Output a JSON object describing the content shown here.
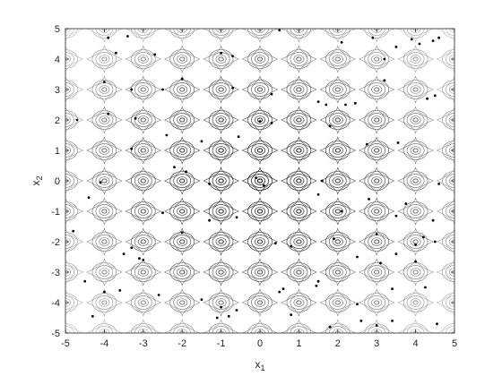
{
  "chart_data": {
    "type": "contour",
    "title": "",
    "xlabel": "x",
    "xlabel_sub": "1",
    "ylabel": "x",
    "ylabel_sub": "2",
    "xlim": [
      -5,
      5
    ],
    "ylim": [
      -5,
      5
    ],
    "xticks": [
      -5,
      -4,
      -3,
      -2,
      -1,
      0,
      1,
      2,
      3,
      4,
      5
    ],
    "yticks": [
      -5,
      -4,
      -3,
      -2,
      -1,
      0,
      1,
      2,
      3,
      4,
      5
    ],
    "grid": false,
    "contour_colormap": "gray",
    "points": [
      [
        -3.9,
        4.7
      ],
      [
        -3.4,
        4.75
      ],
      [
        -3.7,
        4.2
      ],
      [
        -2.7,
        4.15
      ],
      [
        -1.0,
        4.2
      ],
      [
        -0.7,
        4.1
      ],
      [
        0.5,
        4.95
      ],
      [
        2.1,
        4.55
      ],
      [
        2.9,
        4.7
      ],
      [
        3.5,
        4.4
      ],
      [
        3.9,
        4.65
      ],
      [
        4.1,
        4.5
      ],
      [
        4.45,
        4.6
      ],
      [
        4.6,
        4.7
      ],
      [
        3.2,
        4.0
      ],
      [
        -4.0,
        3.25
      ],
      [
        -2.0,
        3.35
      ],
      [
        -3.3,
        3.0
      ],
      [
        -2.5,
        3.0
      ],
      [
        -0.7,
        3.05
      ],
      [
        0.3,
        2.85
      ],
      [
        1.5,
        2.6
      ],
      [
        1.7,
        2.5
      ],
      [
        2.2,
        2.5
      ],
      [
        2.45,
        2.55
      ],
      [
        3.2,
        3.3
      ],
      [
        4.3,
        2.7
      ],
      [
        4.5,
        2.8
      ],
      [
        -4.7,
        2.0
      ],
      [
        -3.9,
        2.2
      ],
      [
        -3.2,
        2.05
      ],
      [
        -2.4,
        1.5
      ],
      [
        -1.5,
        1.3
      ],
      [
        -0.55,
        1.45
      ],
      [
        0.0,
        1.95
      ],
      [
        0.3,
        1.9
      ],
      [
        1.8,
        1.8
      ],
      [
        2.75,
        1.2
      ],
      [
        3.55,
        1.25
      ],
      [
        -3.3,
        1.05
      ],
      [
        -2.2,
        0.45
      ],
      [
        -1.9,
        0.3
      ],
      [
        -4.1,
        -0.05
      ],
      [
        -0.1,
        0.1
      ],
      [
        0.1,
        -0.15
      ],
      [
        -1.3,
        -0.1
      ],
      [
        1.6,
        0.0
      ],
      [
        4.6,
        -0.1
      ],
      [
        -4.4,
        -0.55
      ],
      [
        -2.5,
        -1.05
      ],
      [
        -1.3,
        -1.3
      ],
      [
        -0.6,
        -1.2
      ],
      [
        1.5,
        -0.45
      ],
      [
        2.1,
        -1.0
      ],
      [
        2.8,
        -0.6
      ],
      [
        3.75,
        -0.75
      ],
      [
        3.5,
        -1.15
      ],
      [
        4.45,
        -1.3
      ],
      [
        -4.8,
        -1.65
      ],
      [
        -3.3,
        -2.2
      ],
      [
        -2.0,
        -1.7
      ],
      [
        0.4,
        -2.05
      ],
      [
        0.8,
        -2.15
      ],
      [
        1.9,
        -1.9
      ],
      [
        3.0,
        -1.75
      ],
      [
        4.0,
        -2.1
      ],
      [
        4.2,
        -1.85
      ],
      [
        4.5,
        -2.0
      ],
      [
        -3.5,
        -2.4
      ],
      [
        -3.1,
        -2.55
      ],
      [
        -3.0,
        -2.6
      ],
      [
        2.5,
        -2.5
      ],
      [
        3.1,
        -2.7
      ],
      [
        3.5,
        -2.4
      ],
      [
        4.0,
        -2.65
      ],
      [
        -4.5,
        -3.3
      ],
      [
        -4.0,
        -3.65
      ],
      [
        -3.6,
        -3.6
      ],
      [
        -2.6,
        -3.75
      ],
      [
        -1.5,
        -3.9
      ],
      [
        -1.0,
        -4.15
      ],
      [
        -0.6,
        -4.25
      ],
      [
        0.6,
        -3.55
      ],
      [
        0.5,
        -3.65
      ],
      [
        1.5,
        -3.3
      ],
      [
        1.45,
        -3.45
      ],
      [
        2.5,
        -4.05
      ],
      [
        3.4,
        -3.55
      ],
      [
        4.25,
        -3.5
      ],
      [
        -4.3,
        -4.45
      ],
      [
        -1.1,
        -4.5
      ],
      [
        -0.8,
        -4.45
      ],
      [
        0.8,
        -4.4
      ],
      [
        1.8,
        -4.8
      ],
      [
        2.6,
        -4.6
      ],
      [
        3.0,
        -4.75
      ],
      [
        3.4,
        -4.6
      ],
      [
        4.55,
        -4.7
      ]
    ]
  }
}
